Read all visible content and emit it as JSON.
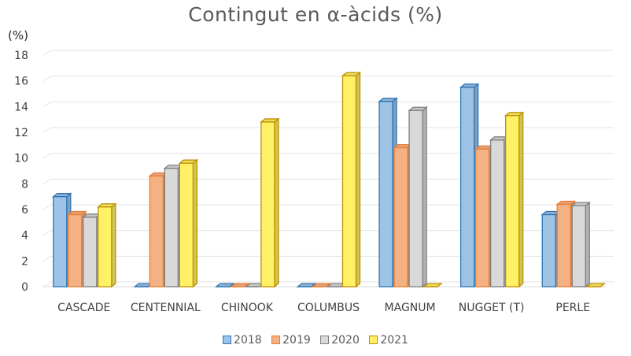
{
  "chart_data": {
    "type": "bar",
    "title": "Contingut en α-àcids (%)",
    "ylabel": "(%)",
    "xlabel": "",
    "categories": [
      "CASCADE",
      "CENTENNIAL",
      "CHINOOK",
      "COLUMBUS",
      "MAGNUM",
      "NUGGET (T)",
      "PERLE"
    ],
    "series": [
      {
        "name": "2018",
        "color": "#9DC3E6",
        "edge": "#2E75B6",
        "values": [
          7.0,
          0,
          0,
          0,
          14.4,
          15.5,
          5.6
        ]
      },
      {
        "name": "2019",
        "color": "#F4B183",
        "edge": "#ED7D31",
        "values": [
          5.6,
          8.6,
          0,
          0,
          10.8,
          10.7,
          6.4
        ]
      },
      {
        "name": "2020",
        "color": "#D9D9D9",
        "edge": "#7F7F7F",
        "values": [
          5.4,
          9.2,
          0,
          0,
          13.7,
          11.4,
          6.3
        ]
      },
      {
        "name": "2021",
        "color": "#FFF066",
        "edge": "#BF9000",
        "values": [
          6.2,
          9.6,
          12.8,
          16.4,
          0,
          13.3,
          0
        ]
      }
    ],
    "ylim": [
      0,
      18
    ],
    "yticks": [
      0,
      2,
      4,
      6,
      8,
      10,
      12,
      14,
      16,
      18
    ],
    "grid": true,
    "legend": "bottom"
  }
}
